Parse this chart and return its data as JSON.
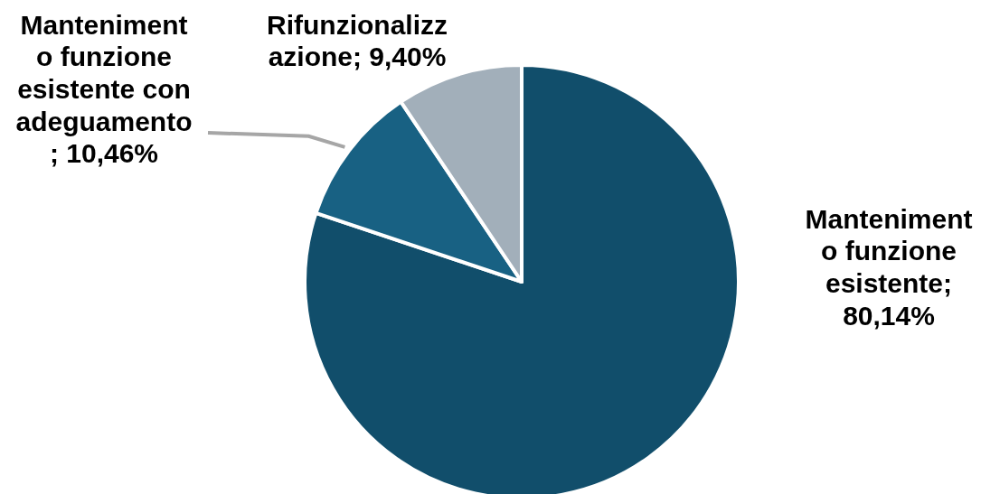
{
  "chart_data": {
    "type": "pie",
    "categories": [
      "Mantenimento funzione esistente",
      "Mantenimento funzione esistente con adeguamento",
      "Rifunzionalizzazione"
    ],
    "values": [
      80.14,
      10.46,
      9.4
    ],
    "colors": [
      "#114e6b",
      "#186183",
      "#a2afba"
    ],
    "value_labels": [
      "; 80,14%",
      "; 10,46%",
      "; 9,40%"
    ],
    "legend": false
  }
}
